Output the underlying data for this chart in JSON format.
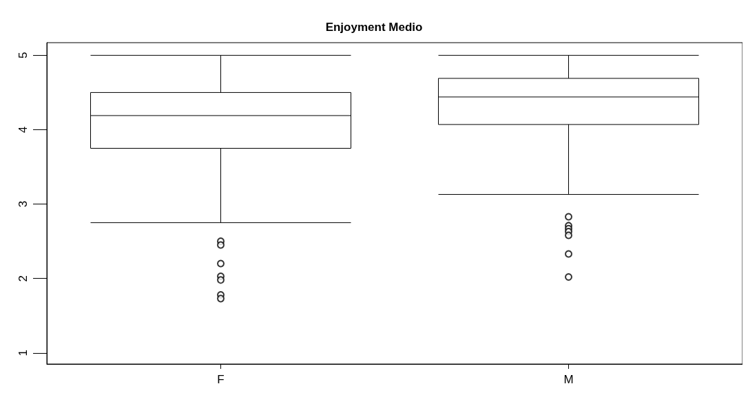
{
  "chart_data": {
    "type": "box",
    "title": "Enjoyment Medio",
    "categories": [
      "F",
      "M"
    ],
    "boxes": [
      {
        "low": 2.75,
        "q1": 3.75,
        "median": 4.19,
        "q3": 4.5,
        "high": 5,
        "outliers": [
          2.5,
          2.45,
          2.2,
          2.03,
          1.98,
          1.78,
          1.73
        ]
      },
      {
        "low": 3.13,
        "q1": 4.07,
        "median": 4.44,
        "q3": 4.69,
        "high": 5,
        "outliers": [
          2.83,
          2.71,
          2.67,
          2.63,
          2.58,
          2.33,
          2.02
        ]
      }
    ],
    "ylim": [
      0.85,
      5.17
    ],
    "yticks": [
      1,
      2,
      3,
      4,
      5
    ]
  }
}
